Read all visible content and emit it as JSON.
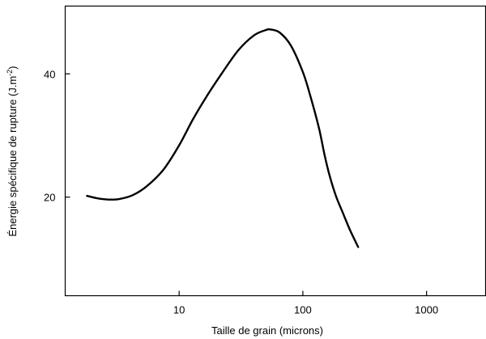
{
  "chart_data": {
    "type": "line",
    "title": "",
    "xlabel": "Taille de grain (microns)",
    "ylabel": "Énergie spécifique de rupture (J.m-2)",
    "ylabel_main": "Énergie spécifique de rupture (J.m",
    "ylabel_sup": "-2",
    "ylabel_end": ")",
    "x_scale": "log",
    "xlim": [
      1.2,
      3000
    ],
    "ylim": [
      4,
      51
    ],
    "x_ticks": [
      10,
      100,
      1000
    ],
    "x_tick_labels": [
      "10",
      "100",
      "1000"
    ],
    "y_ticks": [
      20,
      40
    ],
    "y_tick_labels": [
      "20",
      "40"
    ],
    "grid": false,
    "legend": "none",
    "series": [
      {
        "color": "#000000",
        "x": [
          1.8,
          2.2,
          2.7,
          3.3,
          4.2,
          5.5,
          7.5,
          10,
          13,
          17,
          22,
          30,
          40,
          50,
          55,
          65,
          80,
          100,
          115,
          135,
          150,
          165,
          185,
          210,
          240,
          280
        ],
        "y": [
          20.2,
          19.8,
          19.6,
          19.7,
          20.3,
          21.8,
          24.5,
          28.4,
          32.7,
          36.6,
          40.0,
          43.8,
          46.2,
          47.1,
          47.2,
          46.7,
          44.6,
          40.3,
          36.4,
          31.2,
          26.8,
          23.4,
          20.2,
          17.5,
          14.7,
          11.9
        ]
      }
    ]
  }
}
